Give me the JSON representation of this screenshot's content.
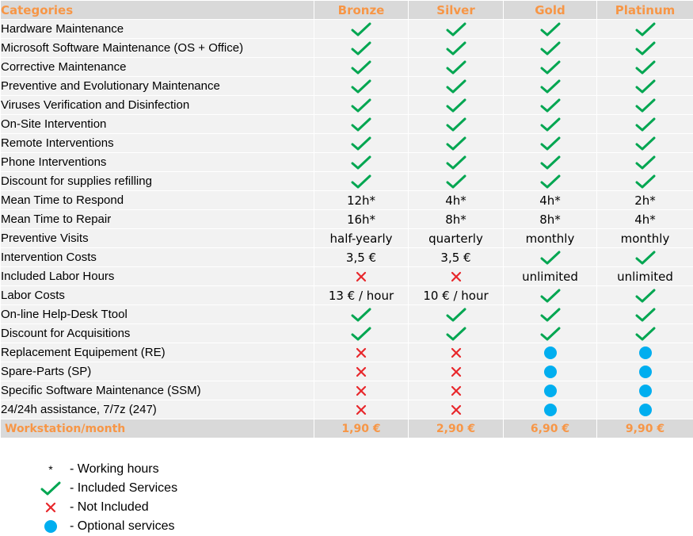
{
  "header": {
    "categories": "Categories",
    "plans": [
      "Bronze",
      "Silver",
      "Gold",
      "Platinum"
    ]
  },
  "rows": [
    {
      "label": "Hardware Maintenance",
      "cells": [
        "check",
        "check",
        "check",
        "check"
      ]
    },
    {
      "label": "Microsoft Software Maintenance (OS + Office)",
      "cells": [
        "check",
        "check",
        "check",
        "check"
      ]
    },
    {
      "label": "Corrective Maintenance",
      "cells": [
        "check",
        "check",
        "check",
        "check"
      ]
    },
    {
      "label": "Preventive and Evolutionary Maintenance",
      "cells": [
        "check",
        "check",
        "check",
        "check"
      ]
    },
    {
      "label": "Viruses Verification and Disinfection",
      "cells": [
        "check",
        "check",
        "check",
        "check"
      ]
    },
    {
      "label": "On-Site Intervention",
      "cells": [
        "check",
        "check",
        "check",
        "check"
      ]
    },
    {
      "label": "Remote Interventions",
      "cells": [
        "check",
        "check",
        "check",
        "check"
      ]
    },
    {
      "label": "Phone Interventions",
      "cells": [
        "check",
        "check",
        "check",
        "check"
      ]
    },
    {
      "label": "Discount for supplies refilling",
      "cells": [
        "check",
        "check",
        "check",
        "check"
      ]
    },
    {
      "label": "Mean Time to Respond",
      "cells": [
        "12h*",
        "4h*",
        "4h*",
        "2h*"
      ]
    },
    {
      "label": "Mean Time to Repair",
      "cells": [
        "16h*",
        "8h*",
        "8h*",
        "4h*"
      ]
    },
    {
      "label": "Preventive Visits",
      "cells": [
        "half-yearly",
        "quarterly",
        "monthly",
        "monthly"
      ]
    },
    {
      "label": "Intervention Costs",
      "cells": [
        "3,5 €",
        "3,5 €",
        "check",
        "check"
      ]
    },
    {
      "label": "Included Labor Hours",
      "cells": [
        "cross",
        "cross",
        "unlimited",
        "unlimited"
      ]
    },
    {
      "label": "Labor Costs",
      "cells": [
        "13 € / hour",
        "10 € / hour",
        "check",
        "check"
      ]
    },
    {
      "label": "On-line Help-Desk Ttool",
      "cells": [
        "check",
        "check",
        "check",
        "check"
      ]
    },
    {
      "label": "Discount for Acquisitions",
      "cells": [
        "check",
        "check",
        "check",
        "check"
      ]
    },
    {
      "label": "Replacement Equipement (RE)",
      "cells": [
        "cross",
        "cross",
        "dot",
        "dot"
      ]
    },
    {
      "label": "Spare-Parts (SP)",
      "cells": [
        "cross",
        "cross",
        "dot",
        "dot"
      ]
    },
    {
      "label": "Specific Software Maintenance (SSM)",
      "cells": [
        "cross",
        "cross",
        "dot",
        "dot"
      ]
    },
    {
      "label": "24/24h assistance, 7/7z (247)",
      "cells": [
        "cross",
        "cross",
        "dot",
        "dot"
      ]
    }
  ],
  "footer": {
    "label": "Workstation/month",
    "prices": [
      "1,90 €",
      "2,90 €",
      "6,90 €",
      "9,90 €"
    ]
  },
  "legend": [
    {
      "symbol": "star",
      "symbol_text": "*",
      "text": "- Working hours"
    },
    {
      "symbol": "check",
      "text": "- Included Services"
    },
    {
      "symbol": "cross",
      "text": "- Not Included"
    },
    {
      "symbol": "dot",
      "text": "- Optional services"
    }
  ],
  "colors": {
    "header_bg": "#d9d9d9",
    "row_bg": "#f2f2f2",
    "accent_orange": "#f79646",
    "check_green": "#00a651",
    "cross_red": "#e8272b",
    "dot_blue": "#00aeef"
  },
  "icons": {
    "check": "checkmark-icon",
    "cross": "cross-icon",
    "dot": "optional-dot-icon"
  }
}
